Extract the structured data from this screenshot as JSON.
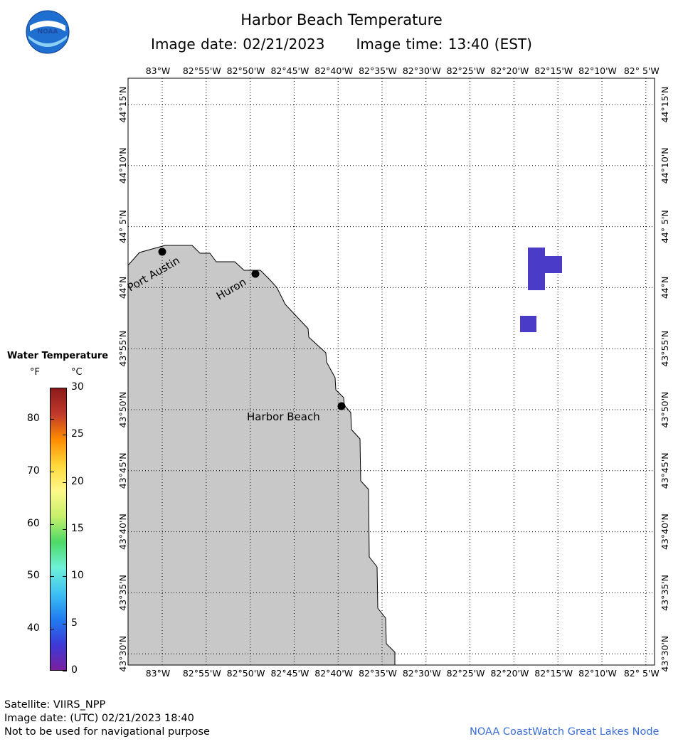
{
  "header": {
    "title": "Harbor Beach Temperature",
    "image_date_label": "Image date: 02/21/2023",
    "image_time_label": "Image time: 13:40 (EST)"
  },
  "logo": {
    "text": "NOAA",
    "icon": "noaa-logo-icon"
  },
  "map": {
    "lon_labels": [
      "83°W",
      "82°55'W",
      "82°50'W",
      "82°45'W",
      "82°40'W",
      "82°35'W",
      "82°30'W",
      "82°25'W",
      "82°20'W",
      "82°15'W",
      "82°10'W",
      "82° 5'W"
    ],
    "lat_labels": [
      "44°15'N",
      "44°10'N",
      "44° 5'N",
      "44°N",
      "43°55'N",
      "43°50'N",
      "43°45'N",
      "43°40'N",
      "43°35'N",
      "43°30'N"
    ],
    "places": [
      {
        "name": "Port Austin",
        "lon": -82.98,
        "lat": 44.046
      },
      {
        "name": "Huron",
        "lon": -82.867,
        "lat": 44.028
      },
      {
        "name": "Harbor Beach",
        "lon": -82.661,
        "lat": 43.845
      }
    ],
    "land_color": "#c8c8c8",
    "water_color": "#ffffff",
    "sst_pixel_color": "#4b3cc8",
    "sst_pixels_temp_c": 2
  },
  "legend": {
    "title": "Water Temperature",
    "unit_f": "°F",
    "unit_c": "°C",
    "f_ticks": [
      "80",
      "70",
      "60",
      "50",
      "40"
    ],
    "c_ticks": [
      "30",
      "25",
      "20",
      "15",
      "10",
      "5",
      "0"
    ],
    "colors": [
      "#8b1a1a",
      "#c0392b",
      "#ff8c00",
      "#ffd83a",
      "#fff98a",
      "#c6f06b",
      "#4cd966",
      "#6ef2d9",
      "#3ec2f2",
      "#1f7ef0",
      "#3c3ad8",
      "#7a1f9e"
    ]
  },
  "footer": {
    "satellite": "Satellite: VIIRS_NPP",
    "utc_date": "Image date: (UTC) 02/21/2023  18:40",
    "disclaimer": "Not to be used for navigational purpose",
    "credit": "NOAA CoastWatch Great Lakes Node"
  }
}
